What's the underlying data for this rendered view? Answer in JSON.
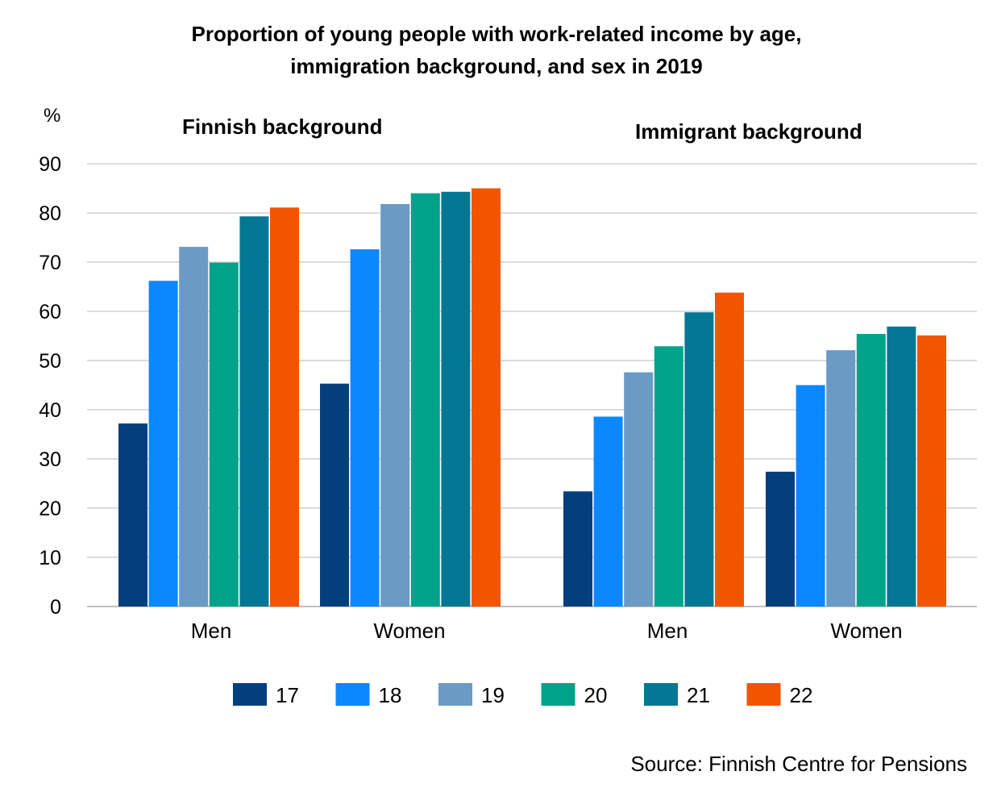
{
  "title": {
    "line1": "Proportion of young people with work-related income by age,",
    "line2": "immigration background, and sex in 2019"
  },
  "source": "Source: Finnish Centre for Pensions",
  "colors": {
    "17": "#033f7d",
    "18": "#0b88ff",
    "19": "#6b9ac4",
    "20": "#00a389",
    "21": "#037794",
    "22": "#f25500",
    "grid": "#c8c8c8",
    "axis": "#bfbfbf"
  },
  "chart_data": {
    "type": "bar",
    "ylabel": "%",
    "ylim": [
      0,
      90
    ],
    "yticks": [
      0,
      10,
      20,
      30,
      40,
      50,
      60,
      70,
      80,
      90
    ],
    "series_names": [
      "17",
      "18",
      "19",
      "20",
      "21",
      "22"
    ],
    "panels": [
      {
        "name": "Finnish background",
        "categories": [
          "Men",
          "Women"
        ],
        "series": [
          {
            "name": "17",
            "values": [
              37.2,
              45.3
            ]
          },
          {
            "name": "18",
            "values": [
              66.2,
              72.6
            ]
          },
          {
            "name": "19",
            "values": [
              73.1,
              81.8
            ]
          },
          {
            "name": "20",
            "values": [
              69.9,
              84.0
            ]
          },
          {
            "name": "21",
            "values": [
              79.3,
              84.3
            ]
          },
          {
            "name": "22",
            "values": [
              81.1,
              85.0
            ]
          }
        ]
      },
      {
        "name": "Immigrant background",
        "categories": [
          "Men",
          "Women"
        ],
        "series": [
          {
            "name": "17",
            "values": [
              23.4,
              27.4
            ]
          },
          {
            "name": "18",
            "values": [
              38.6,
              45.0
            ]
          },
          {
            "name": "19",
            "values": [
              47.6,
              52.1
            ]
          },
          {
            "name": "20",
            "values": [
              52.9,
              55.4
            ]
          },
          {
            "name": "21",
            "values": [
              59.8,
              56.9
            ]
          },
          {
            "name": "22",
            "values": [
              63.8,
              55.1
            ]
          }
        ]
      }
    ]
  }
}
